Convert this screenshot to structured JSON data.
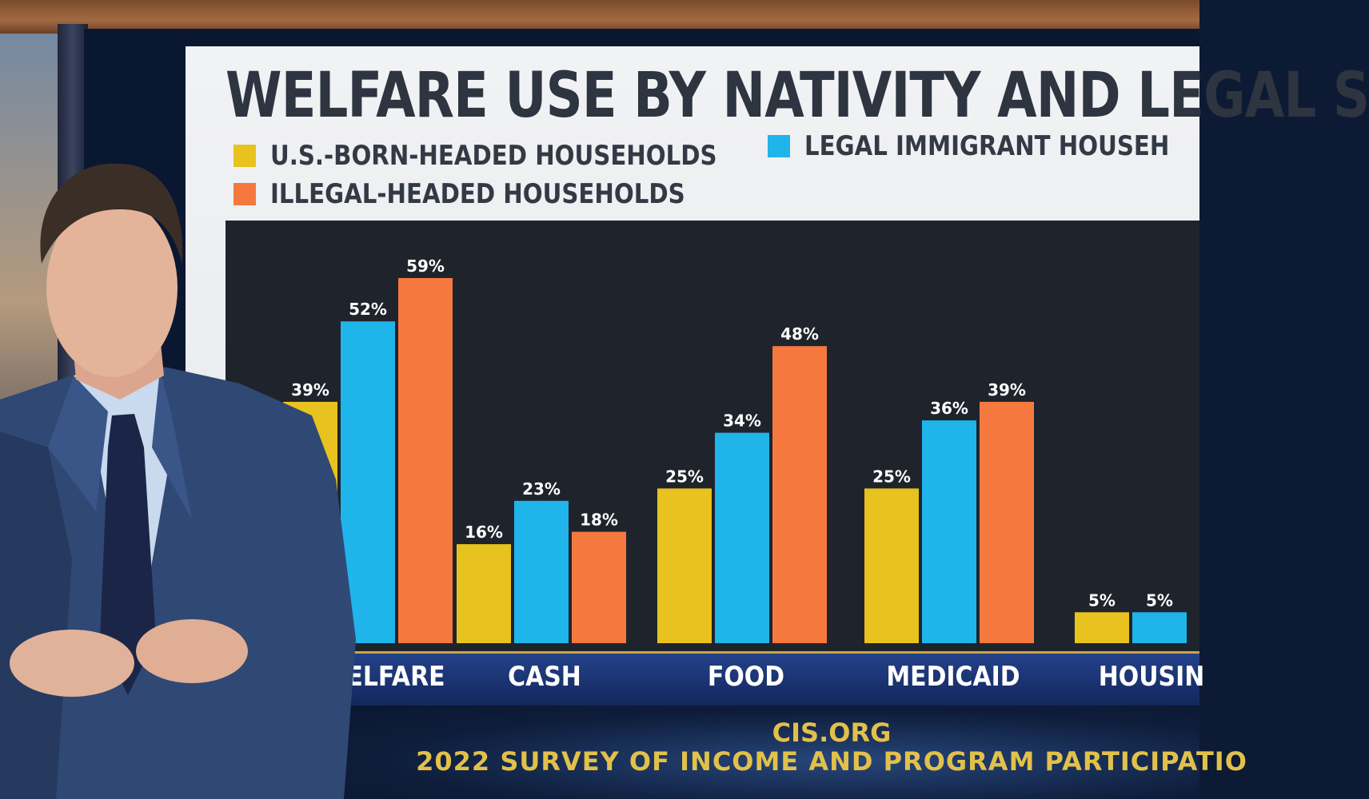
{
  "chart_data": {
    "type": "bar",
    "title": "WELFARE USE BY NATIVITY AND LEGAL S",
    "legend": [
      {
        "name": "U.S.-BORN-HEADED HOUSEHOLDS",
        "color": "#e8c21e"
      },
      {
        "name": "LEGAL IMMIGRANT HOUSEH",
        "color": "#1fb4ea"
      },
      {
        "name": "ILLEGAL-HEADED HOUSEHOLDS",
        "color": "#f5793f"
      }
    ],
    "categories": [
      "ELFARE",
      "CASH",
      "FOOD",
      "MEDICAID",
      "HOUSIN"
    ],
    "series": [
      {
        "name": "U.S.-BORN-HEADED HOUSEHOLDS",
        "values": [
          39,
          16,
          25,
          25,
          5
        ],
        "labels": [
          "39%",
          "16%",
          "25%",
          "25%",
          "5%"
        ]
      },
      {
        "name": "LEGAL IMMIGRANT HOUSEH",
        "values": [
          52,
          23,
          34,
          36,
          5
        ],
        "labels": [
          "52%",
          "23%",
          "34%",
          "36%",
          "5%"
        ]
      },
      {
        "name": "ILLEGAL-HEADED HOUSEHOLDS",
        "values": [
          59,
          18,
          48,
          39,
          null
        ],
        "labels": [
          "59%",
          "18%",
          "48%",
          "39%",
          ""
        ]
      }
    ],
    "colors": [
      "#e8c21e",
      "#1fb4ea",
      "#f5793f"
    ],
    "ylim": [
      0,
      60
    ],
    "grid": false,
    "legend_position": "top-left"
  },
  "source": {
    "line1": "CIS.ORG",
    "line2": "2022 SURVEY OF INCOME AND PROGRAM PARTICIPATIO"
  },
  "colors": {
    "panel": "#eceef1",
    "plot_bg": "#1f242c",
    "category_band": "#1a3375",
    "source_text": "#e2c14a",
    "suit": "#2f4874"
  }
}
